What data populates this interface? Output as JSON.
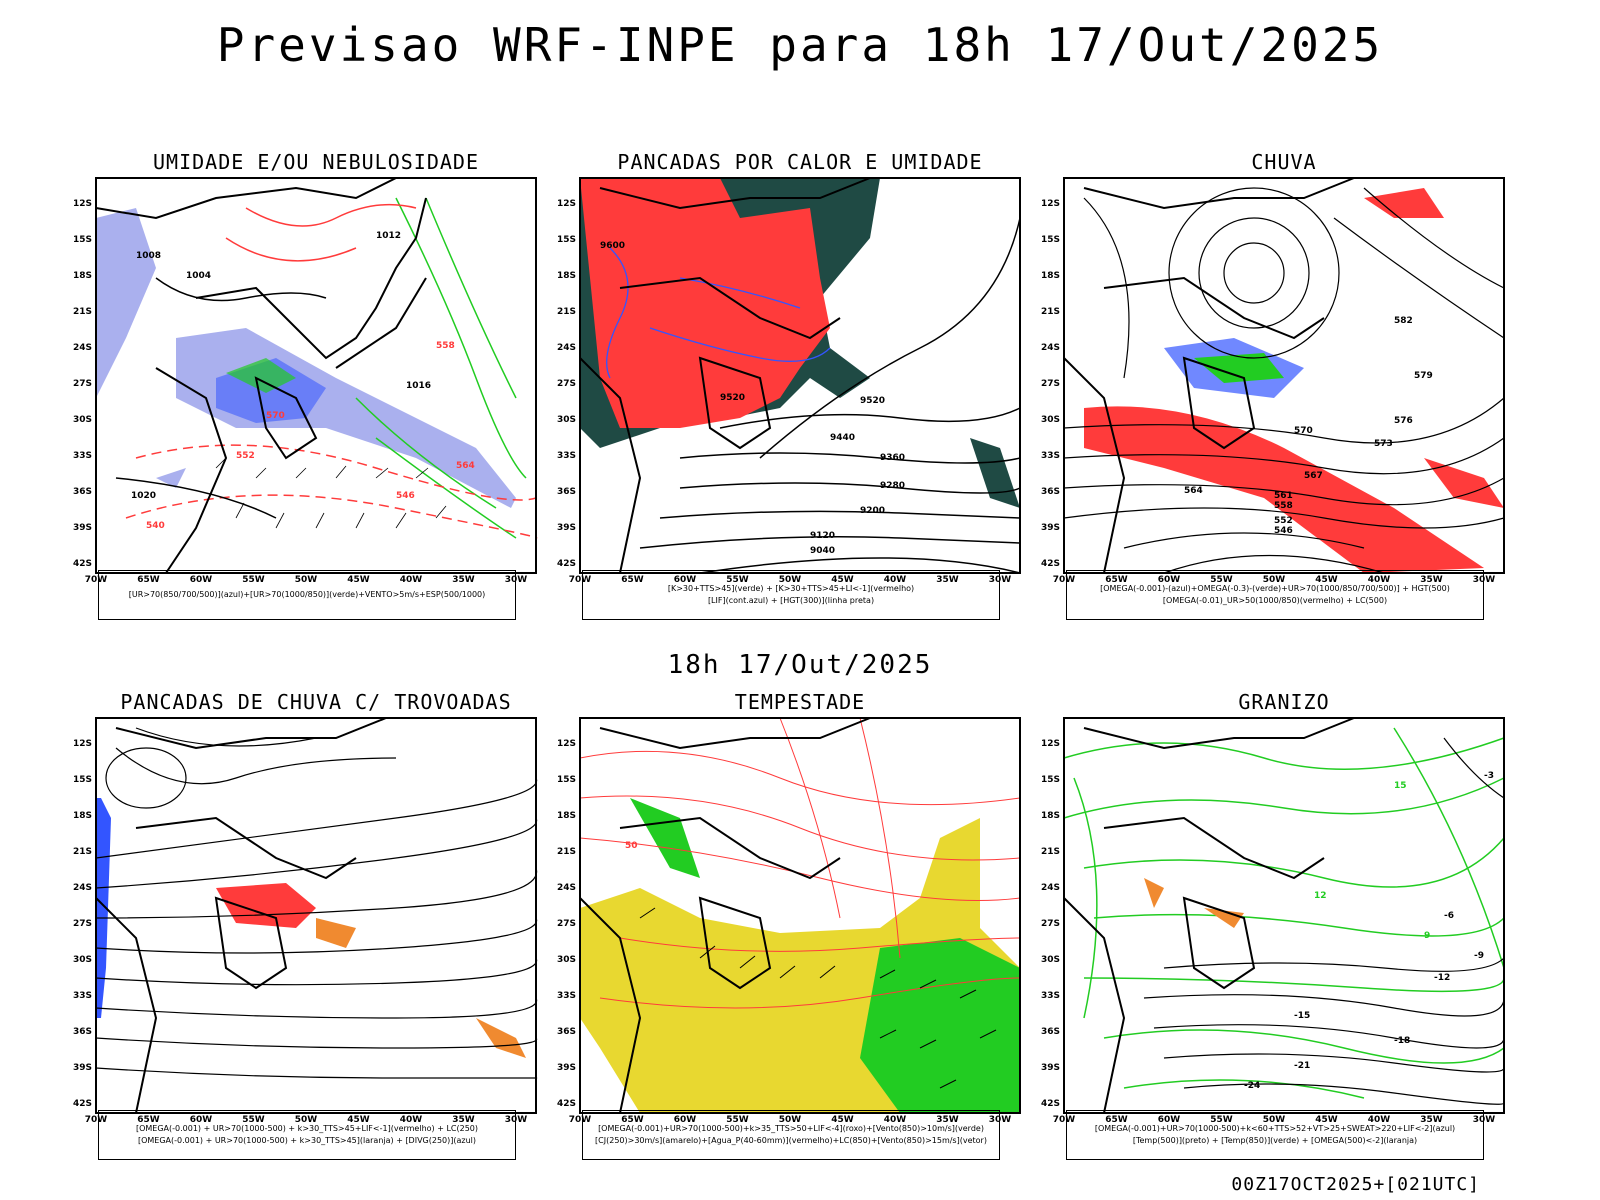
{
  "header": {
    "title": "Previsao WRF-INPE  para 18h 17/Out/2025"
  },
  "middle": {
    "title": "18h 17/Out/2025"
  },
  "footer": {
    "run": "00Z17OCT2025+[021UTC]"
  },
  "axes": {
    "lat_labels": [
      "12S",
      "15S",
      "18S",
      "21S",
      "24S",
      "27S",
      "30S",
      "33S",
      "36S",
      "39S",
      "42S"
    ],
    "lon_labels": [
      "70W",
      "65W",
      "60W",
      "55W",
      "50W",
      "45W",
      "40W",
      "35W",
      "30W"
    ]
  },
  "colors": {
    "red": "#ff3b3b",
    "green": "#22cc22",
    "blue": "#3355ff",
    "lavender": "#aab0ee",
    "darkteal": "#1f4a44",
    "yellow": "#e8d830",
    "orange": "#f08a30",
    "black": "#000000"
  },
  "panels": [
    {
      "title": "UMIDADE E/OU NEBULOSIDADE",
      "legend": [
        "[UR>70(850/700/500)](azul)+[UR>70(1000/850)](verde)+VENTO>5m/s+ESP(500/1000)"
      ],
      "labels": [
        "1008",
        "1012",
        "1016",
        "1004",
        "1020",
        "570",
        "564",
        "558",
        "552",
        "546",
        "540"
      ]
    },
    {
      "title": "PANCADAS POR CALOR E UMIDADE",
      "legend": [
        "[K>30+TTS>45](verde) + [K>30+TTS>45+LI<-1](vermelho)",
        "[LIF](cont.azul) + [HGT(300)](linha preta)"
      ],
      "labels": [
        "9600",
        "9520",
        "9440",
        "9360",
        "9280",
        "9200",
        "9120",
        "9040"
      ]
    },
    {
      "title": "CHUVA",
      "legend": [
        "[OMEGA(-0.001)-(azul)+OMEGA(-0.3)-(verde)+UR>70(1000/850/700/500)] + HGT(500)",
        "[OMEGA(-0.01)_UR>50(1000/850)(vermelho) + LC(500)"
      ],
      "labels": [
        "582",
        "579",
        "576",
        "573",
        "570",
        "567",
        "564",
        "561",
        "558",
        "552",
        "546"
      ]
    },
    {
      "title": "PANCADAS DE CHUVA C/ TROVOADAS",
      "legend": [
        "[OMEGA(-0.001) + UR>70(1000-500) + k>30_TTS>45+LIF<-1](vermelho) + LC(250)",
        "[OMEGA(-0.001) + UR>70(1000-500) + k>30_TTS>45](laranja) + [DIVG(250)](azul)"
      ],
      "labels": []
    },
    {
      "title": "TEMPESTADE",
      "legend": [
        "[OMEGA(-0.001)+UR>70(1000-500)+k>35_TTS>50+LIF<-4](roxo)+[Vento(850)>10m/s](verde)",
        "[CJ(250)>30m/s](amarelo)+[Agua_P(40-60mm)](vermelho)+LC(850)+[Vento(850)>15m/s](vetor)"
      ],
      "labels": [
        "50"
      ]
    },
    {
      "title": "GRANIZO",
      "legend": [
        "[OMEGA(-0.001)+UR>70(1000-500)+k<60+TTS>52+VT>25+SWEAT>220+LIF<-2](azul)",
        "[Temp(500)](preto) + [Temp(850)](verde) + [OMEGA(500)<-2](laranja)"
      ],
      "labels": [
        "-3",
        "-6",
        "-9",
        "-12",
        "-15",
        "-18",
        "-21",
        "-24",
        "15",
        "12",
        "9"
      ]
    }
  ]
}
